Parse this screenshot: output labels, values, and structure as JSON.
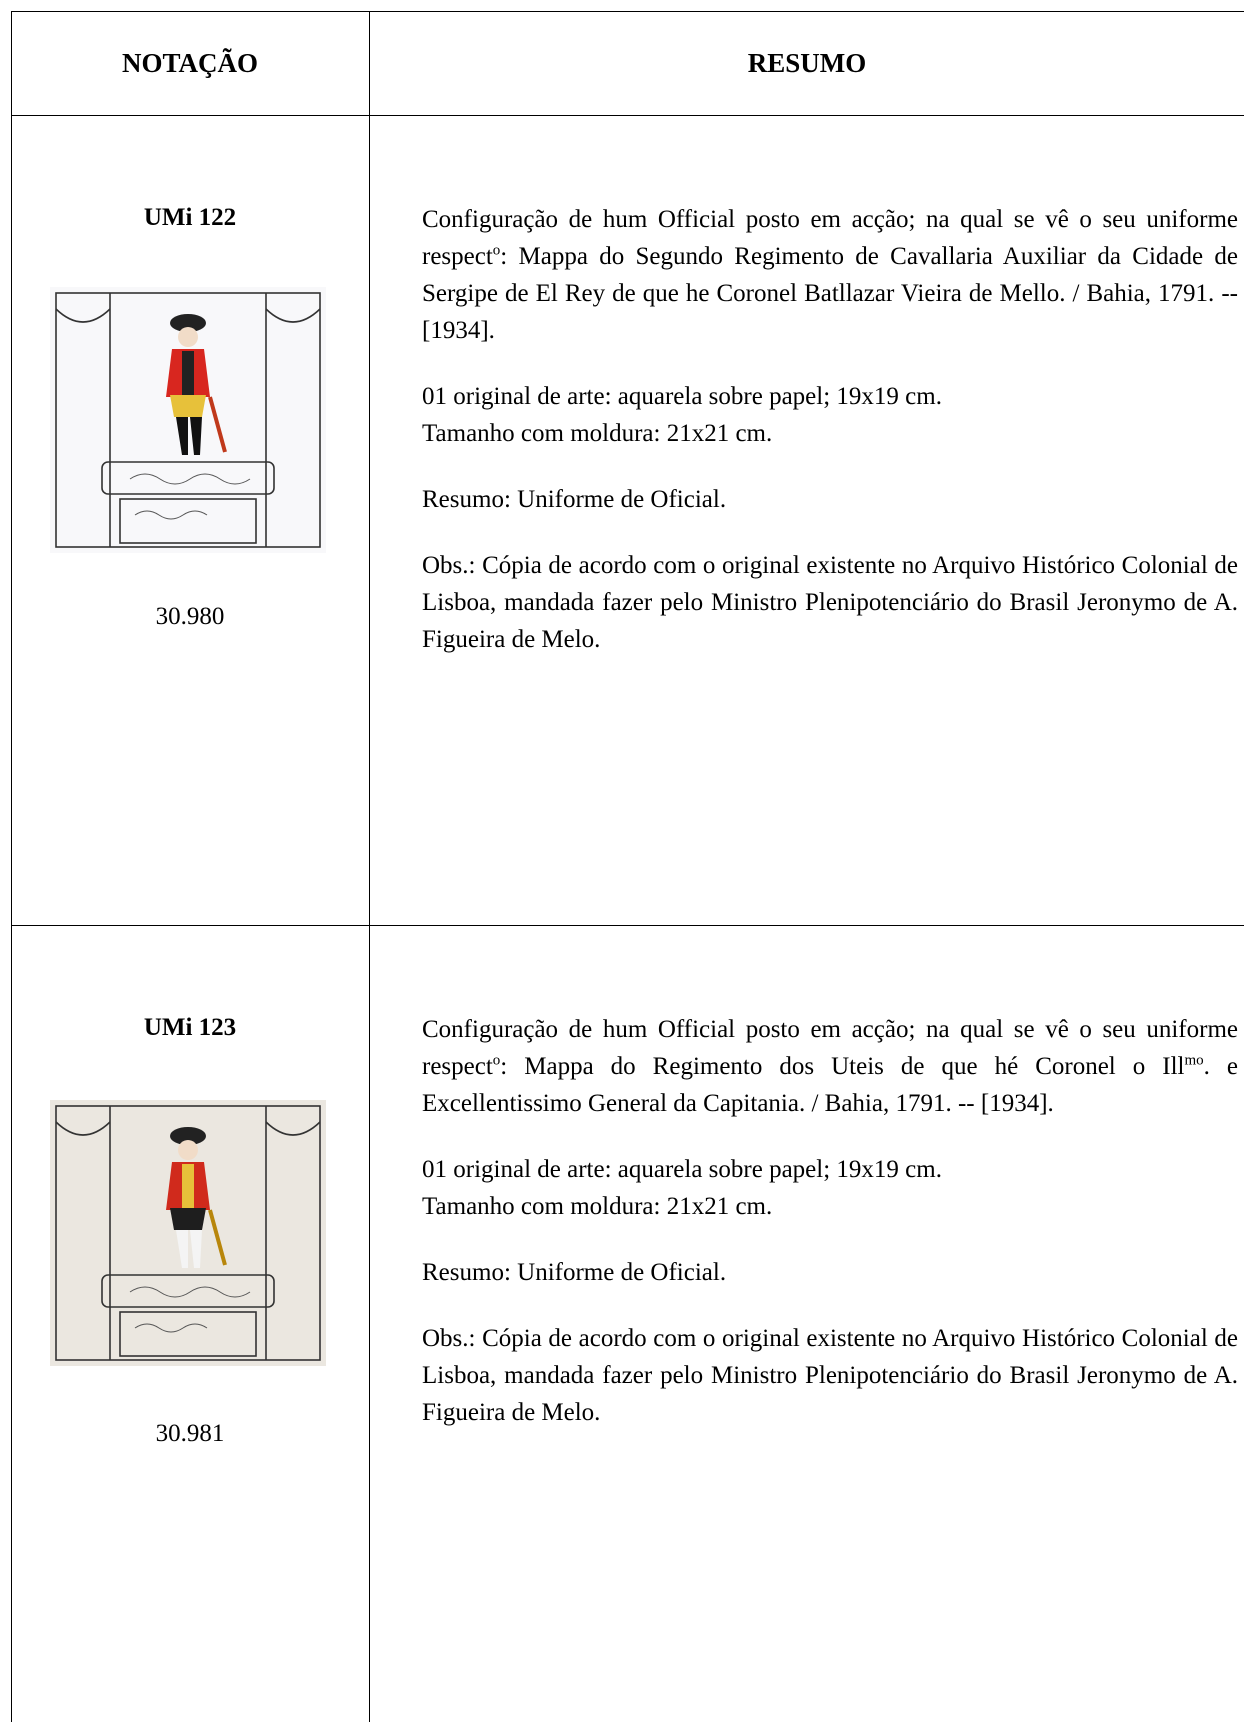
{
  "table": {
    "header": [
      "NOTAÇÃO",
      "RESUMO"
    ],
    "rows": [
      {
        "notation": "UMi 122",
        "number": "30.980",
        "summary": [
          {
            "runs": [
              {
                "text": "Configuração de hum Official posto em acção; na qual se vê o seu uniforme respect"
              },
              {
                "sup": "o"
              },
              {
                "text": ": Mappa do Segundo Regimento de Cavallaria Auxiliar da Cidade de Sergipe de El Rey de que he Coronel Batllazar Vieira de Mello.  / Bahia, 1791. -- [1934]."
              }
            ]
          },
          {
            "lines": [
              "01 original de arte: aquarela sobre papel; 19x19 cm.",
              "Tamanho com moldura: 21x21 cm."
            ]
          },
          {
            "text": "Resumo: Uniforme de Oficial."
          },
          {
            "text": "Obs.: Cópia de acordo com o original existente no Arquivo Histórico Colonial de Lisboa, mandada fazer pelo Ministro Plenipotenciário do Brasil Jeronymo de A. Figueira de Melo."
          }
        ]
      },
      {
        "notation": "UMi 123",
        "number": "30.981",
        "summary": [
          {
            "runs": [
              {
                "text": "Configuração de hum Official posto em acção; na qual se vê o seu uniforme respect"
              },
              {
                "sup": "o"
              },
              {
                "text": ": Mappa do Regimento dos Uteis de que hé Coronel o Ill"
              },
              {
                "sup": "mo"
              },
              {
                "text": ". e Excellentissimo General da Capitania.  / Bahia, 1791. -- [1934]."
              }
            ]
          },
          {
            "lines": [
              "01 original de arte: aquarela sobre papel; 19x19 cm.",
              "Tamanho com moldura: 21x21 cm."
            ]
          },
          {
            "text": "Resumo: Uniforme de Oficial."
          },
          {
            "text": "Obs.: Cópia de acordo com o original existente no Arquivo Histórico Colonial de Lisboa, mandada fazer pelo Ministro Plenipotenciário do Brasil Jeronymo de A. Figueira de Melo."
          }
        ]
      }
    ]
  }
}
